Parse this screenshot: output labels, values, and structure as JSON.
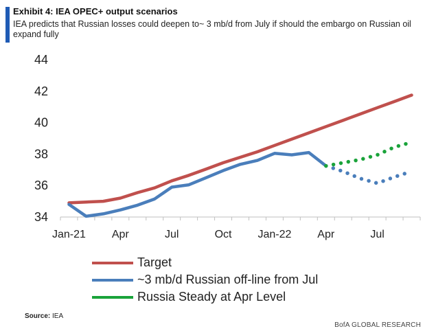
{
  "header": {
    "title": "Exhibit 4: IEA OPEC+ output scenarios",
    "subtitle": "IEA predicts that Russian losses could deepen to~ 3 mb/d from July if should the embargo on Russian oil expand fully"
  },
  "colors": {
    "accent_bar": "#1f5bb5",
    "target": "#c0504d",
    "russian_offline": "#4a7ebb",
    "steady": "#1aa33a"
  },
  "chart_data": {
    "type": "line",
    "title": "",
    "xlabel": "",
    "ylabel": "",
    "ylim": [
      34,
      44
    ],
    "yticks": [
      34,
      36,
      38,
      40,
      42,
      44
    ],
    "x_tick_labels": [
      "Jan-21",
      "Apr",
      "Jul",
      "Oct",
      "Jan-22",
      "Apr",
      "Jul"
    ],
    "x_tick_months": [
      0,
      3,
      6,
      9,
      12,
      15,
      18
    ],
    "xlim": [
      -0.5,
      20.5
    ],
    "grid": false,
    "legend_position": "bottom",
    "series": [
      {
        "name": "Target",
        "color": "#c0504d",
        "style": "solid",
        "points": [
          [
            0,
            34.9
          ],
          [
            1,
            34.95
          ],
          [
            2,
            35.0
          ],
          [
            3,
            35.2
          ],
          [
            4,
            35.55
          ],
          [
            5,
            35.85
          ],
          [
            6,
            36.3
          ],
          [
            7,
            36.65
          ],
          [
            8,
            37.05
          ],
          [
            9,
            37.45
          ],
          [
            10,
            37.8
          ],
          [
            11,
            38.15
          ],
          [
            12,
            38.55
          ],
          [
            13,
            38.95
          ],
          [
            14,
            39.35
          ],
          [
            15,
            39.75
          ],
          [
            16,
            40.15
          ],
          [
            17,
            40.55
          ],
          [
            18,
            40.95
          ],
          [
            19,
            41.35
          ],
          [
            20,
            41.75
          ]
        ]
      },
      {
        "name": "~3 mb/d Russian off-line from Jul",
        "color": "#4a7ebb",
        "style": "solid",
        "points": [
          [
            0,
            34.8
          ],
          [
            1,
            34.05
          ],
          [
            2,
            34.2
          ],
          [
            3,
            34.45
          ],
          [
            4,
            34.75
          ],
          [
            5,
            35.15
          ],
          [
            6,
            35.9
          ],
          [
            7,
            36.05
          ],
          [
            8,
            36.5
          ],
          [
            9,
            36.95
          ],
          [
            10,
            37.35
          ],
          [
            11,
            37.6
          ],
          [
            12,
            38.05
          ],
          [
            13,
            37.95
          ],
          [
            14,
            38.1
          ],
          [
            15,
            37.25
          ]
        ]
      },
      {
        "name": "~3 mb/d Russian off-line from Jul (forecast)",
        "color": "#4a7ebb",
        "style": "dotted",
        "points": [
          [
            15,
            37.25
          ],
          [
            16,
            36.9
          ],
          [
            17,
            36.45
          ],
          [
            18,
            36.15
          ],
          [
            19,
            36.55
          ],
          [
            20,
            36.9
          ]
        ]
      },
      {
        "name": "Russia Steady at Apr Level",
        "color": "#1aa33a",
        "style": "dotted",
        "points": [
          [
            15,
            37.25
          ],
          [
            16,
            37.45
          ],
          [
            17,
            37.65
          ],
          [
            18,
            37.95
          ],
          [
            19,
            38.45
          ],
          [
            20,
            38.75
          ]
        ]
      }
    ]
  },
  "legend": [
    {
      "label": "Target",
      "color": "#c0504d"
    },
    {
      "label": "~3 mb/d Russian off-line from Jul",
      "color": "#4a7ebb"
    },
    {
      "label": "Russia Steady at Apr Level",
      "color": "#1aa33a"
    }
  ],
  "footer": {
    "source_label": "Source:",
    "source_value": "IEA",
    "brand": "BofA GLOBAL RESEARCH"
  }
}
